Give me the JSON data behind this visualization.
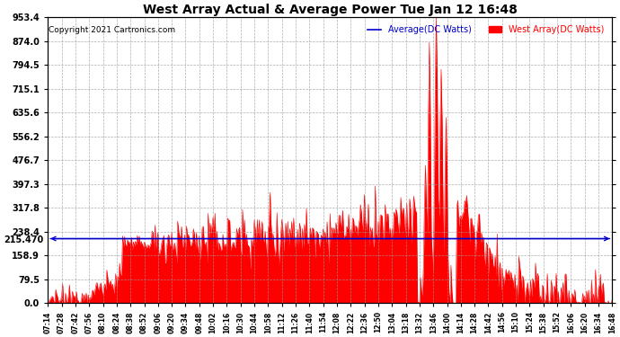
{
  "title": "West Array Actual & Average Power Tue Jan 12 16:48",
  "copyright": "Copyright 2021 Cartronics.com",
  "legend_avg": "Average(DC Watts)",
  "legend_west": "West Array(DC Watts)",
  "avg_value": 215.47,
  "ymin": 0.0,
  "ymax": 953.4,
  "yticks": [
    0.0,
    79.5,
    158.9,
    238.4,
    317.8,
    397.3,
    476.7,
    556.2,
    635.6,
    715.1,
    794.5,
    874.0,
    953.4
  ],
  "avg_label": "215.470",
  "background_color": "#ffffff",
  "plot_bg_color": "#ffffff",
  "grid_color": "#999999",
  "fill_color": "#ff0000",
  "line_color": "#ff0000",
  "avg_line_color": "#0000cc",
  "title_color": "#000000",
  "copyright_color": "#000000",
  "avg_legend_color": "#0000cc",
  "west_legend_color": "#ff0000",
  "xtick_start_hour": 7,
  "xtick_start_min": 14,
  "xtick_end_hour": 16,
  "xtick_end_min": 48,
  "xtick_interval_min": 14
}
